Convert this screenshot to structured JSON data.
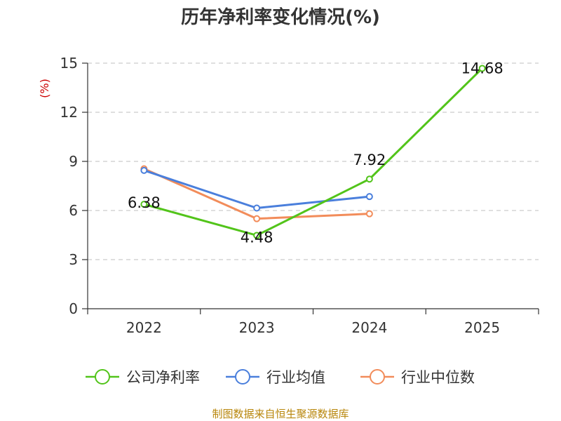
{
  "chart_data": {
    "type": "line",
    "title": "历年净利率变化情况(%)",
    "ylabel": "(%)",
    "categories": [
      "2022",
      "2023",
      "2024",
      "2025"
    ],
    "ylim": [
      0,
      15
    ],
    "yticks": [
      0,
      3,
      6,
      9,
      12,
      15
    ],
    "grid": true,
    "legend_position": "bottom",
    "series": [
      {
        "name": "公司净利率",
        "color": "#52c41a",
        "values": [
          6.38,
          4.48,
          7.92,
          14.68
        ],
        "labels": [
          "6.38",
          "4.48",
          "7.92",
          "14.68"
        ]
      },
      {
        "name": "行业均值",
        "color": "#4a7fdc",
        "values": [
          8.45,
          6.15,
          6.85,
          null
        ]
      },
      {
        "name": "行业中位数",
        "color": "#f28c5a",
        "values": [
          8.55,
          5.5,
          5.8,
          null
        ]
      }
    ],
    "colors": {
      "unit": "#cc0000",
      "source": "#b8860b"
    }
  },
  "source": "制图数据来自恒生聚源数据库"
}
